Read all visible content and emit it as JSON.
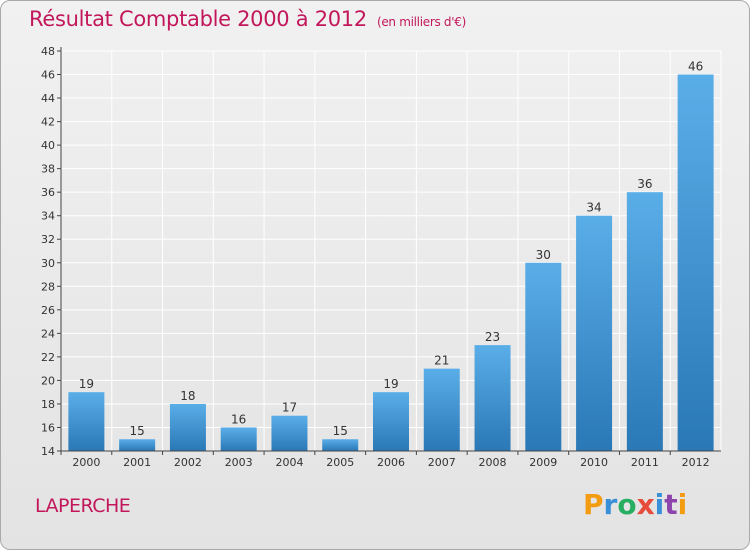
{
  "header": {
    "title": "Résultat Comptable 2000 à 2012",
    "unit": "(en milliers d'€)"
  },
  "commune": "LAPERCHE",
  "logo": {
    "text": "Proxiti",
    "letters": [
      "P",
      "r",
      "o",
      "x",
      "i",
      "t",
      "i"
    ],
    "colors": [
      "#f39c12",
      "#3a8fd9",
      "#27ae60",
      "#e74c3c",
      "#3a8fd9",
      "#8e44ad",
      "#f39c12"
    ]
  },
  "colors": {
    "title": "#c2185b",
    "bar_top": "#5aaee8",
    "bar_bottom": "#2a78b6",
    "grid": "#ffffff",
    "axis": "#444444"
  },
  "chart_data": {
    "type": "bar",
    "title": "Résultat Comptable 2000 à 2012",
    "xlabel": "",
    "ylabel": "",
    "categories": [
      "2000",
      "2001",
      "2002",
      "2003",
      "2004",
      "2005",
      "2006",
      "2007",
      "2008",
      "2009",
      "2010",
      "2011",
      "2012"
    ],
    "values": [
      19,
      15,
      18,
      16,
      17,
      15,
      19,
      21,
      23,
      30,
      34,
      36,
      46
    ],
    "ylim": [
      14,
      48
    ],
    "yticks": [
      14,
      16,
      18,
      20,
      22,
      24,
      26,
      28,
      30,
      32,
      34,
      36,
      38,
      40,
      42,
      44,
      46,
      48
    ],
    "grid": true
  }
}
